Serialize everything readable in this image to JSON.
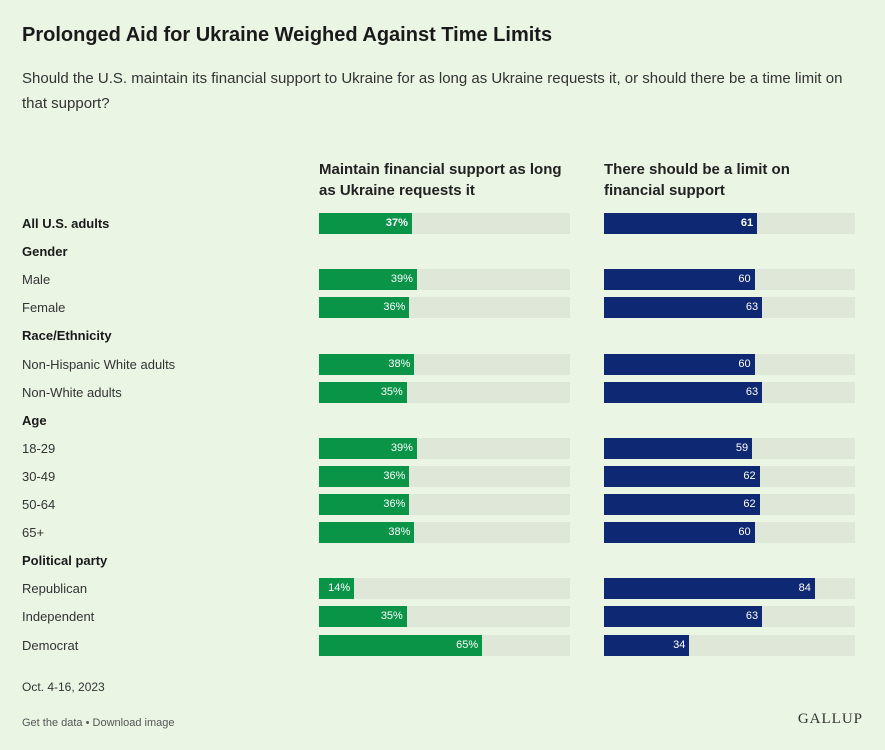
{
  "title": "Prolonged Aid for Ukraine Weighed Against Time Limits",
  "subtitle": "Should the U.S. maintain its financial support to Ukraine for as long as Ukraine requests it, or should there be a time limit on that support?",
  "footnote": "Oct. 4-16, 2023",
  "links": {
    "get_data": "Get the data",
    "separator": "•",
    "download": "Download image"
  },
  "logo": "GALLUP",
  "colors": {
    "maintain": "#0a9447",
    "limit": "#0e2873",
    "track": "#dfe7d8",
    "background": "#eaf5e4"
  },
  "chart_data": {
    "type": "bar",
    "orientation": "horizontal",
    "xlim": [
      0,
      100
    ],
    "series": [
      {
        "name": "Maintain financial support as long as Ukraine requests it"
      },
      {
        "name": "There should be a limit on financial support"
      }
    ],
    "rows": [
      {
        "kind": "item",
        "label": "All U.S. adults",
        "bold": true,
        "maintain": 37,
        "maintain_label": "37%",
        "limit": 61,
        "limit_label": "61"
      },
      {
        "kind": "group",
        "label": "Gender"
      },
      {
        "kind": "item",
        "label": "Male",
        "maintain": 39,
        "maintain_label": "39%",
        "limit": 60,
        "limit_label": "60"
      },
      {
        "kind": "item",
        "label": "Female",
        "maintain": 36,
        "maintain_label": "36%",
        "limit": 63,
        "limit_label": "63"
      },
      {
        "kind": "group",
        "label": "Race/Ethnicity"
      },
      {
        "kind": "item",
        "label": "Non-Hispanic White adults",
        "maintain": 38,
        "maintain_label": "38%",
        "limit": 60,
        "limit_label": "60"
      },
      {
        "kind": "item",
        "label": "Non-White adults",
        "maintain": 35,
        "maintain_label": "35%",
        "limit": 63,
        "limit_label": "63"
      },
      {
        "kind": "group",
        "label": "Age"
      },
      {
        "kind": "item",
        "label": "18-29",
        "maintain": 39,
        "maintain_label": "39%",
        "limit": 59,
        "limit_label": "59"
      },
      {
        "kind": "item",
        "label": "30-49",
        "maintain": 36,
        "maintain_label": "36%",
        "limit": 62,
        "limit_label": "62"
      },
      {
        "kind": "item",
        "label": "50-64",
        "maintain": 36,
        "maintain_label": "36%",
        "limit": 62,
        "limit_label": "62"
      },
      {
        "kind": "item",
        "label": "65+",
        "maintain": 38,
        "maintain_label": "38%",
        "limit": 60,
        "limit_label": "60"
      },
      {
        "kind": "group",
        "label": "Political party"
      },
      {
        "kind": "item",
        "label": "Republican",
        "maintain": 14,
        "maintain_label": "14%",
        "limit": 84,
        "limit_label": "84"
      },
      {
        "kind": "item",
        "label": "Independent",
        "maintain": 35,
        "maintain_label": "35%",
        "limit": 63,
        "limit_label": "63"
      },
      {
        "kind": "item",
        "label": "Democrat",
        "maintain": 65,
        "maintain_label": "65%",
        "limit": 34,
        "limit_label": "34"
      }
    ]
  }
}
